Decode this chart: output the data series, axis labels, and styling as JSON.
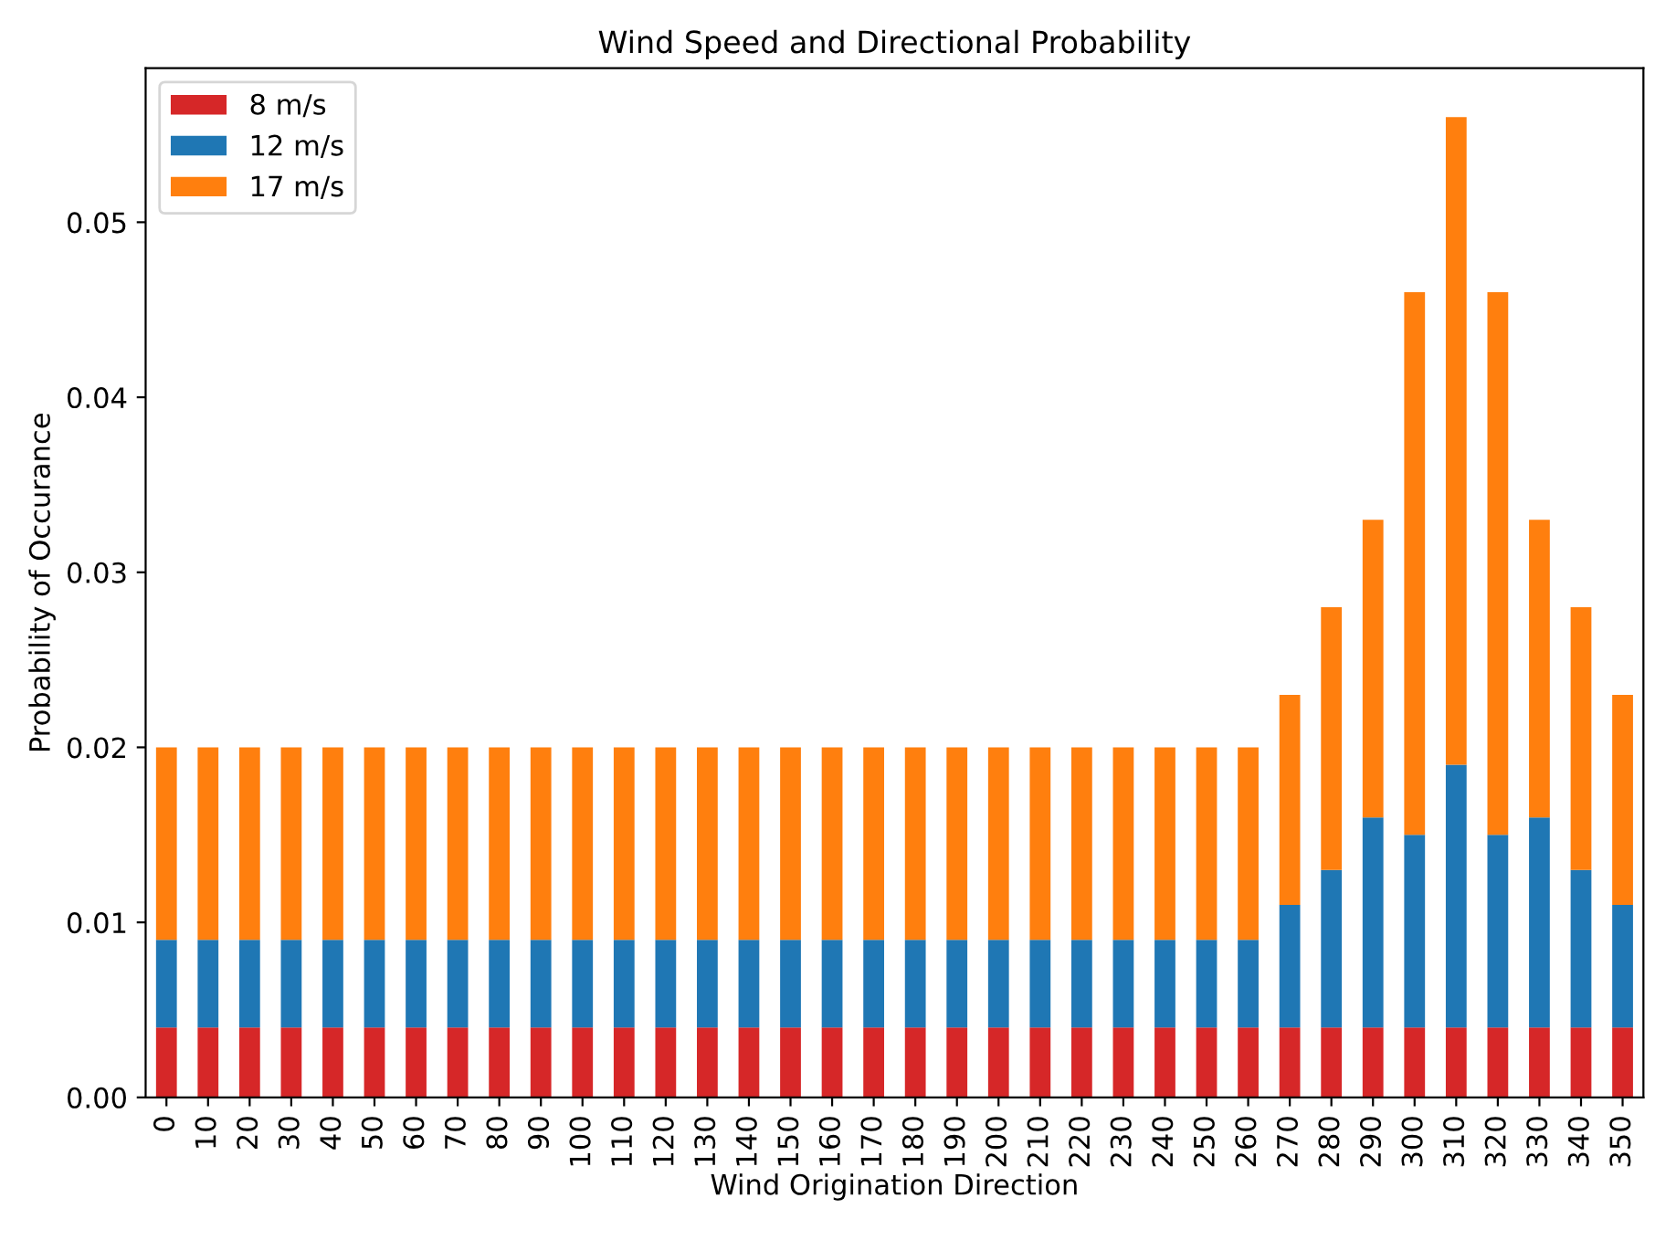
{
  "chart_data": {
    "type": "bar",
    "stacked": true,
    "title": "Wind Speed and Directional Probability",
    "xlabel": "Wind Origination Direction",
    "ylabel": "Probability of Occurance",
    "categories": [
      "0",
      "10",
      "20",
      "30",
      "40",
      "50",
      "60",
      "70",
      "80",
      "90",
      "100",
      "110",
      "120",
      "130",
      "140",
      "150",
      "160",
      "170",
      "180",
      "190",
      "200",
      "210",
      "220",
      "230",
      "240",
      "250",
      "260",
      "270",
      "280",
      "290",
      "300",
      "310",
      "320",
      "330",
      "340",
      "350"
    ],
    "series": [
      {
        "name": "8 m/s",
        "color": "#d62728",
        "values": [
          0.004,
          0.004,
          0.004,
          0.004,
          0.004,
          0.004,
          0.004,
          0.004,
          0.004,
          0.004,
          0.004,
          0.004,
          0.004,
          0.004,
          0.004,
          0.004,
          0.004,
          0.004,
          0.004,
          0.004,
          0.004,
          0.004,
          0.004,
          0.004,
          0.004,
          0.004,
          0.004,
          0.004,
          0.004,
          0.004,
          0.004,
          0.004,
          0.004,
          0.004,
          0.004,
          0.004
        ]
      },
      {
        "name": "12 m/s",
        "color": "#1f77b4",
        "values": [
          0.005,
          0.005,
          0.005,
          0.005,
          0.005,
          0.005,
          0.005,
          0.005,
          0.005,
          0.005,
          0.005,
          0.005,
          0.005,
          0.005,
          0.005,
          0.005,
          0.005,
          0.005,
          0.005,
          0.005,
          0.005,
          0.005,
          0.005,
          0.005,
          0.005,
          0.005,
          0.005,
          0.007,
          0.009,
          0.012,
          0.011,
          0.015,
          0.011,
          0.012,
          0.009,
          0.007
        ]
      },
      {
        "name": "17 m/s",
        "color": "#ff7f0e",
        "values": [
          0.011,
          0.011,
          0.011,
          0.011,
          0.011,
          0.011,
          0.011,
          0.011,
          0.011,
          0.011,
          0.011,
          0.011,
          0.011,
          0.011,
          0.011,
          0.011,
          0.011,
          0.011,
          0.011,
          0.011,
          0.011,
          0.011,
          0.011,
          0.011,
          0.011,
          0.011,
          0.011,
          0.012,
          0.015,
          0.017,
          0.031,
          0.037,
          0.031,
          0.017,
          0.015,
          0.012
        ]
      }
    ],
    "ylim": [
      0,
      0.0588
    ],
    "yticks": [
      {
        "value": 0,
        "label": "0.00"
      },
      {
        "value": 0.01,
        "label": "0.01"
      },
      {
        "value": 0.02,
        "label": "0.02"
      },
      {
        "value": 0.03,
        "label": "0.03"
      },
      {
        "value": 0.04,
        "label": "0.04"
      },
      {
        "value": 0.05,
        "label": "0.05"
      }
    ],
    "legend": "top left",
    "grid": false
  }
}
